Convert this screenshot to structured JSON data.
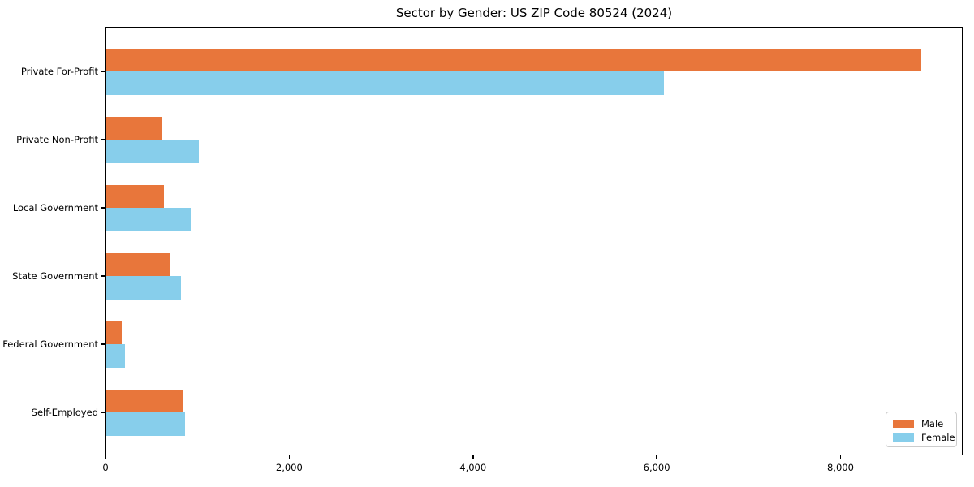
{
  "chart_data": {
    "type": "bar",
    "orientation": "horizontal",
    "title": "Sector by Gender: US ZIP Code 80524 (2024)",
    "categories": [
      "Private For-Profit",
      "Private Non-Profit",
      "Local Government",
      "State Government",
      "Federal Government",
      "Self-Employed"
    ],
    "series": [
      {
        "name": "Male",
        "color": "#e8763b",
        "values": [
          8880,
          615,
          635,
          695,
          180,
          845
        ]
      },
      {
        "name": "Female",
        "color": "#87ceeb",
        "values": [
          6080,
          1020,
          930,
          825,
          210,
          870
        ]
      }
    ],
    "xlabel": "",
    "ylabel": "",
    "xlim": [
      0,
      9330
    ],
    "xticks": [
      0,
      2000,
      4000,
      6000,
      8000
    ],
    "xtick_labels": [
      "0",
      "2,000",
      "4,000",
      "6,000",
      "8,000"
    ],
    "grid": false,
    "legend": {
      "position": "lower right",
      "entries": [
        "Male",
        "Female"
      ]
    }
  },
  "colors": {
    "spine": "#000000",
    "background": "#ffffff",
    "legend_border": "#cccccc",
    "text": "#000000"
  }
}
